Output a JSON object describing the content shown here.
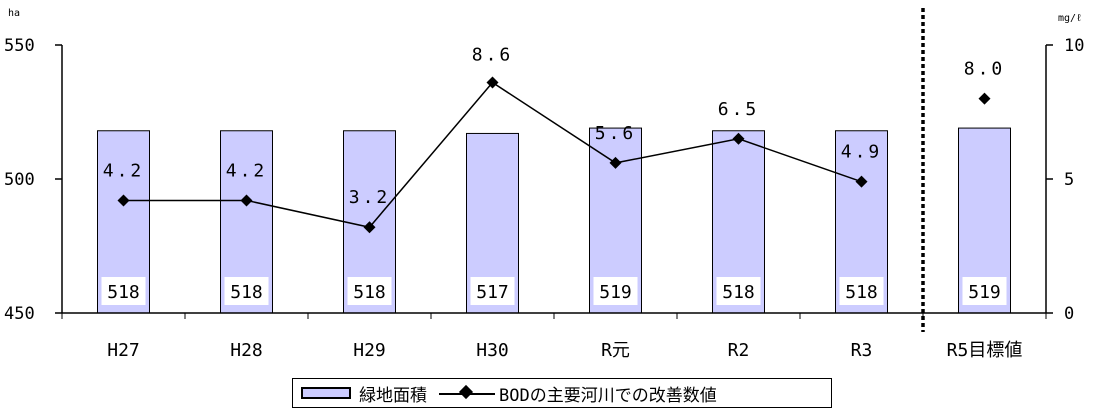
{
  "chart_data": {
    "type": "bar+line",
    "categories": [
      "H27",
      "H28",
      "H29",
      "H30",
      "R元",
      "R2",
      "R3",
      "R5目標値"
    ],
    "bar_series": {
      "name": "緑地面積",
      "values": [
        518,
        518,
        518,
        517,
        519,
        518,
        518,
        519
      ],
      "labels": [
        "518",
        "518",
        "518",
        "517",
        "519",
        "518",
        "518",
        "519"
      ]
    },
    "line_series": {
      "name": "BODの主要河川での改善数値",
      "values": [
        4.2,
        4.2,
        3.2,
        8.6,
        5.6,
        6.5,
        4.9,
        8.0
      ],
      "labels": [
        "4.2",
        "4.2",
        "3.2",
        "8.6",
        "5.6",
        "6.5",
        "4.9",
        "8.0"
      ],
      "connected_points": 7
    },
    "y_left": {
      "unit": "ha",
      "ylim": [
        450,
        550
      ],
      "ticks": [
        "450",
        "500",
        "550"
      ]
    },
    "y_right": {
      "unit": "mg/ℓ",
      "ylim": [
        0,
        10
      ],
      "ticks": [
        "0",
        "5",
        "10"
      ]
    },
    "divider_before_category": "R5目標値",
    "grid": false,
    "legend_position": "bottom",
    "colors": {
      "bar_fill": "#ccccff",
      "line": "#000000",
      "axis": "#000000"
    }
  }
}
